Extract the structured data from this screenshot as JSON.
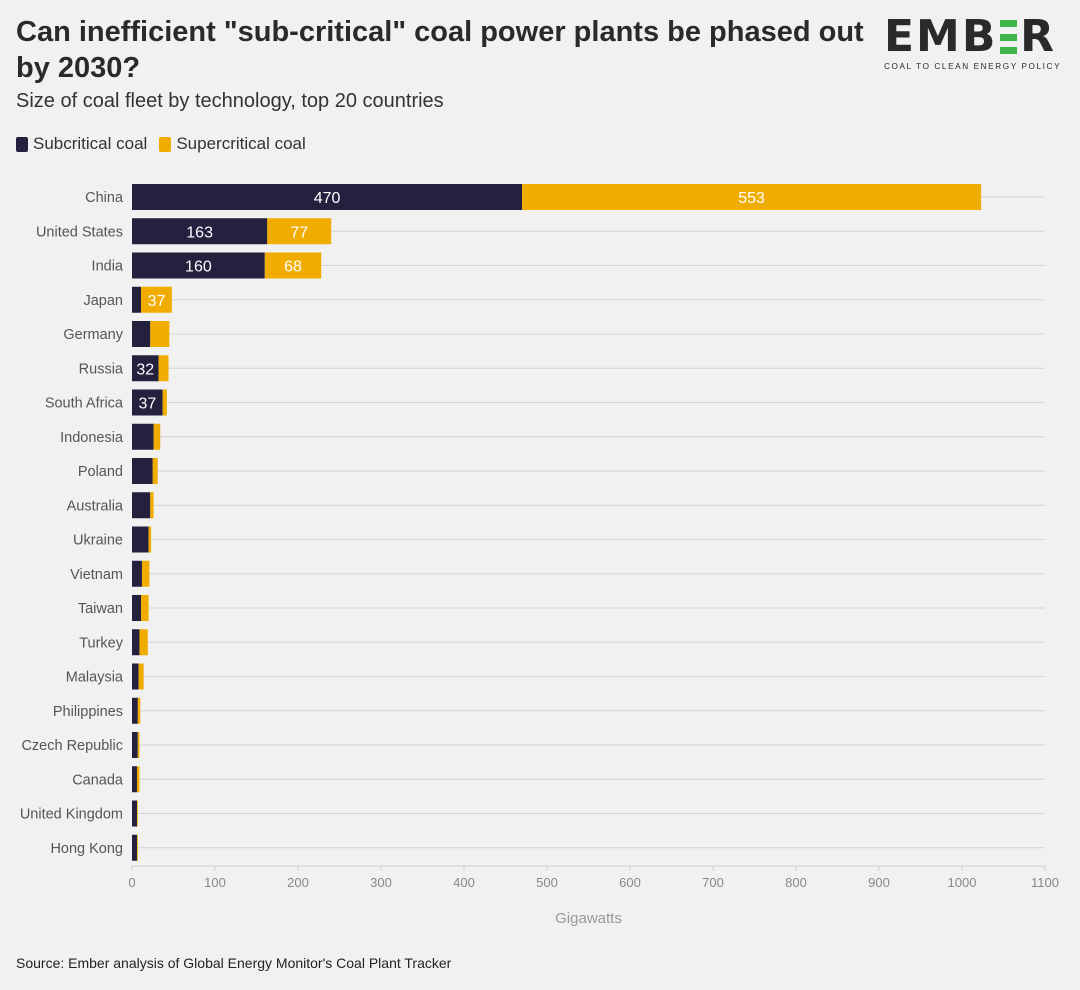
{
  "header": {
    "title": "Can inefficient \"sub-critical\" coal power plants be phased out by 2030?",
    "subtitle": "Size of coal fleet by technology, top 20 countries"
  },
  "logo": {
    "word_left": "EMB",
    "word_right": "R",
    "tagline": "COAL TO CLEAN ENERGY POLICY",
    "accent_color": "#3fb549"
  },
  "footer": {
    "source": "Source: Ember analysis of Global Energy Monitor's Coal Plant Tracker"
  },
  "chart_data": {
    "type": "bar",
    "orientation": "horizontal",
    "stacked": true,
    "categories": [
      "China",
      "United States",
      "India",
      "Japan",
      "Germany",
      "Russia",
      "South Africa",
      "Indonesia",
      "Poland",
      "Australia",
      "Ukraine",
      "Vietnam",
      "Taiwan",
      "Turkey",
      "Malaysia",
      "Philippines",
      "Czech Republic",
      "Canada",
      "United Kingdom",
      "Hong Kong"
    ],
    "series": [
      {
        "name": "Subcritical coal",
        "color": "#24213f",
        "values": [
          470,
          163,
          160,
          11,
          22,
          32,
          37,
          26,
          25,
          22,
          20,
          12,
          11,
          9,
          8,
          7,
          7,
          6,
          6,
          6
        ],
        "data_labels": [
          "470",
          "163",
          "160",
          "",
          "",
          "32",
          "37",
          "",
          "",
          "",
          "",
          "",
          "",
          "",
          "",
          "",
          "",
          "",
          "",
          ""
        ]
      },
      {
        "name": "Supercritical coal",
        "color": "#f0ad00",
        "values": [
          553,
          77,
          68,
          37,
          23,
          12,
          5,
          8,
          6,
          4,
          3,
          9,
          9,
          10,
          6,
          3,
          2,
          3,
          1,
          1
        ],
        "data_labels": [
          "553",
          "77",
          "68",
          "37",
          "",
          "",
          "",
          "",
          "",
          "",
          "",
          "",
          "",
          "",
          "",
          "",
          "",
          "",
          "",
          ""
        ]
      }
    ],
    "xlabel": "Gigawatts",
    "xlim": [
      0,
      1100
    ],
    "xticks": [
      0,
      100,
      200,
      300,
      400,
      500,
      600,
      700,
      800,
      900,
      1000,
      1100
    ],
    "grid": true,
    "legend": "top-left",
    "source": "Source: Ember analysis of Global Energy Monitor's Coal Plant Tracker"
  }
}
